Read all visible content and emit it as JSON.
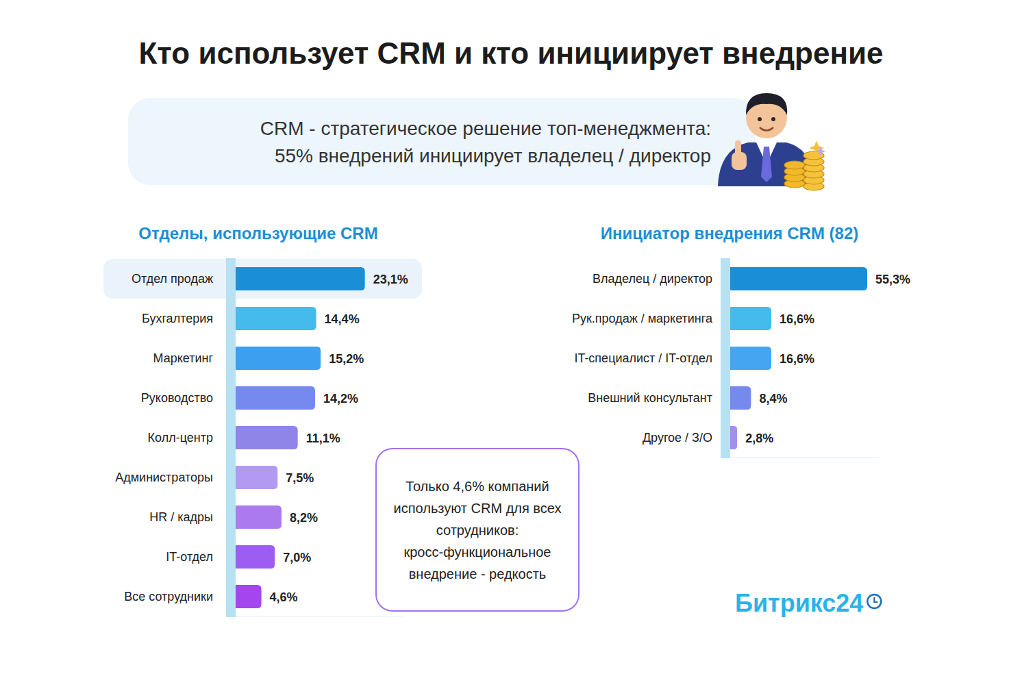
{
  "header": {
    "title": "Кто использует CRM и кто инициирует внедрение",
    "callout": [
      "CRM - стратегическое решение топ-менеджмента:",
      "55% внедрений инициирует владелец / директор"
    ]
  },
  "chart_data": [
    {
      "type": "bar",
      "title": "Отделы, использующие CRM",
      "orientation": "horizontal",
      "categories": [
        "Отдел продаж",
        "Бухгалтерия",
        "Маркетинг",
        "Руководство",
        "Колл-центр",
        "Администраторы",
        "HR / кадры",
        "IT-отдел",
        "Все сотрудники"
      ],
      "values": [
        23.1,
        14.4,
        15.2,
        14.2,
        11.1,
        7.5,
        8.2,
        7.0,
        4.6
      ],
      "value_labels": [
        "23,1%",
        "14,4%",
        "15,2%",
        "14,2%",
        "11,1%",
        "7,5%",
        "8,2%",
        "7,0%",
        "4,6%"
      ],
      "colors": [
        "#1a8fd8",
        "#45bbec",
        "#3d9ff0",
        "#7589ee",
        "#8f84e8",
        "#b29af2",
        "#ab7bee",
        "#9d5cf2",
        "#a545ef"
      ],
      "xlim": [
        0,
        30
      ],
      "grid": false,
      "data_labels": true,
      "tick_labels": "y"
    },
    {
      "type": "bar",
      "title": "Инициатор внедрения CRM (82)",
      "orientation": "horizontal",
      "categories": [
        "Владелец / директор",
        "Рук.продаж / маркетинга",
        "IT-специалист / IT-отдел",
        "Внешний консультант",
        "Другое / З/О"
      ],
      "values": [
        55.3,
        16.6,
        16.6,
        8.4,
        2.8
      ],
      "value_labels": [
        "55,3%",
        "16,6%",
        "16,6%",
        "8,4%",
        "2,8%"
      ],
      "colors": [
        "#1a8fd8",
        "#45bbec",
        "#45a5f0",
        "#7589ee",
        "#a58cf0"
      ],
      "xlim": [
        0,
        60
      ],
      "grid": false,
      "data_labels": true,
      "tick_labels": "y"
    }
  ],
  "note": "Только 4,6% компаний используют CRM для всех сотрудников: кросс-функциональное внедрение - редкость",
  "brand": "Битрикс24"
}
